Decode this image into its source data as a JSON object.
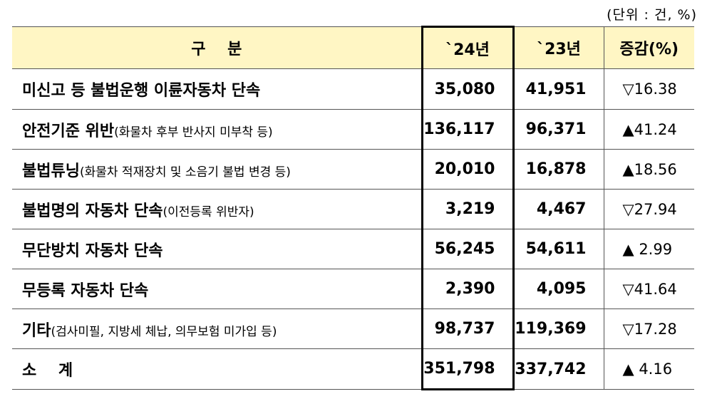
{
  "unit_note": "(단위 : 건, %)",
  "header": {
    "category": "구    분",
    "y2024": "`24년",
    "y2023": "`23년",
    "change": "증감(%)"
  },
  "rows": [
    {
      "label": "미신고 등 불법운행 이륜자동차 단속",
      "detail": "",
      "y2024": "35,080",
      "y2023": "41,951",
      "change": "▽16.38"
    },
    {
      "label": "안전기준 위반",
      "detail": "(화물차 후부 반사지 미부착 등)",
      "y2024": "136,117",
      "y2023": "96,371",
      "change": "▲41.24"
    },
    {
      "label": "불법튜닝",
      "detail": "(화물차 적재장치 및 소음기 불법 변경 등)",
      "y2024": "20,010",
      "y2023": "16,878",
      "change": "▲18.56"
    },
    {
      "label": "불법명의 자동차 단속",
      "detail": "(이전등록 위반자)",
      "y2024": "3,219",
      "y2023": "4,467",
      "change": "▽27.94"
    },
    {
      "label": "무단방치 자동차 단속",
      "detail": "",
      "y2024": "56,245",
      "y2023": "54,611",
      "change": "▲ 2.99"
    },
    {
      "label": "무등록 자동차 단속",
      "detail": "",
      "y2024": "2,390",
      "y2023": "4,095",
      "change": "▽41.64"
    },
    {
      "label": "기타",
      "detail": "(검사미필, 지방세 체납, 의무보험 미가입 등)",
      "y2024": "98,737",
      "y2023": "119,369",
      "change": "▽17.28"
    }
  ],
  "subtotal": {
    "label": "소    계",
    "y2024": "351,798",
    "y2023": "337,742",
    "change": "▲ 4.16"
  }
}
